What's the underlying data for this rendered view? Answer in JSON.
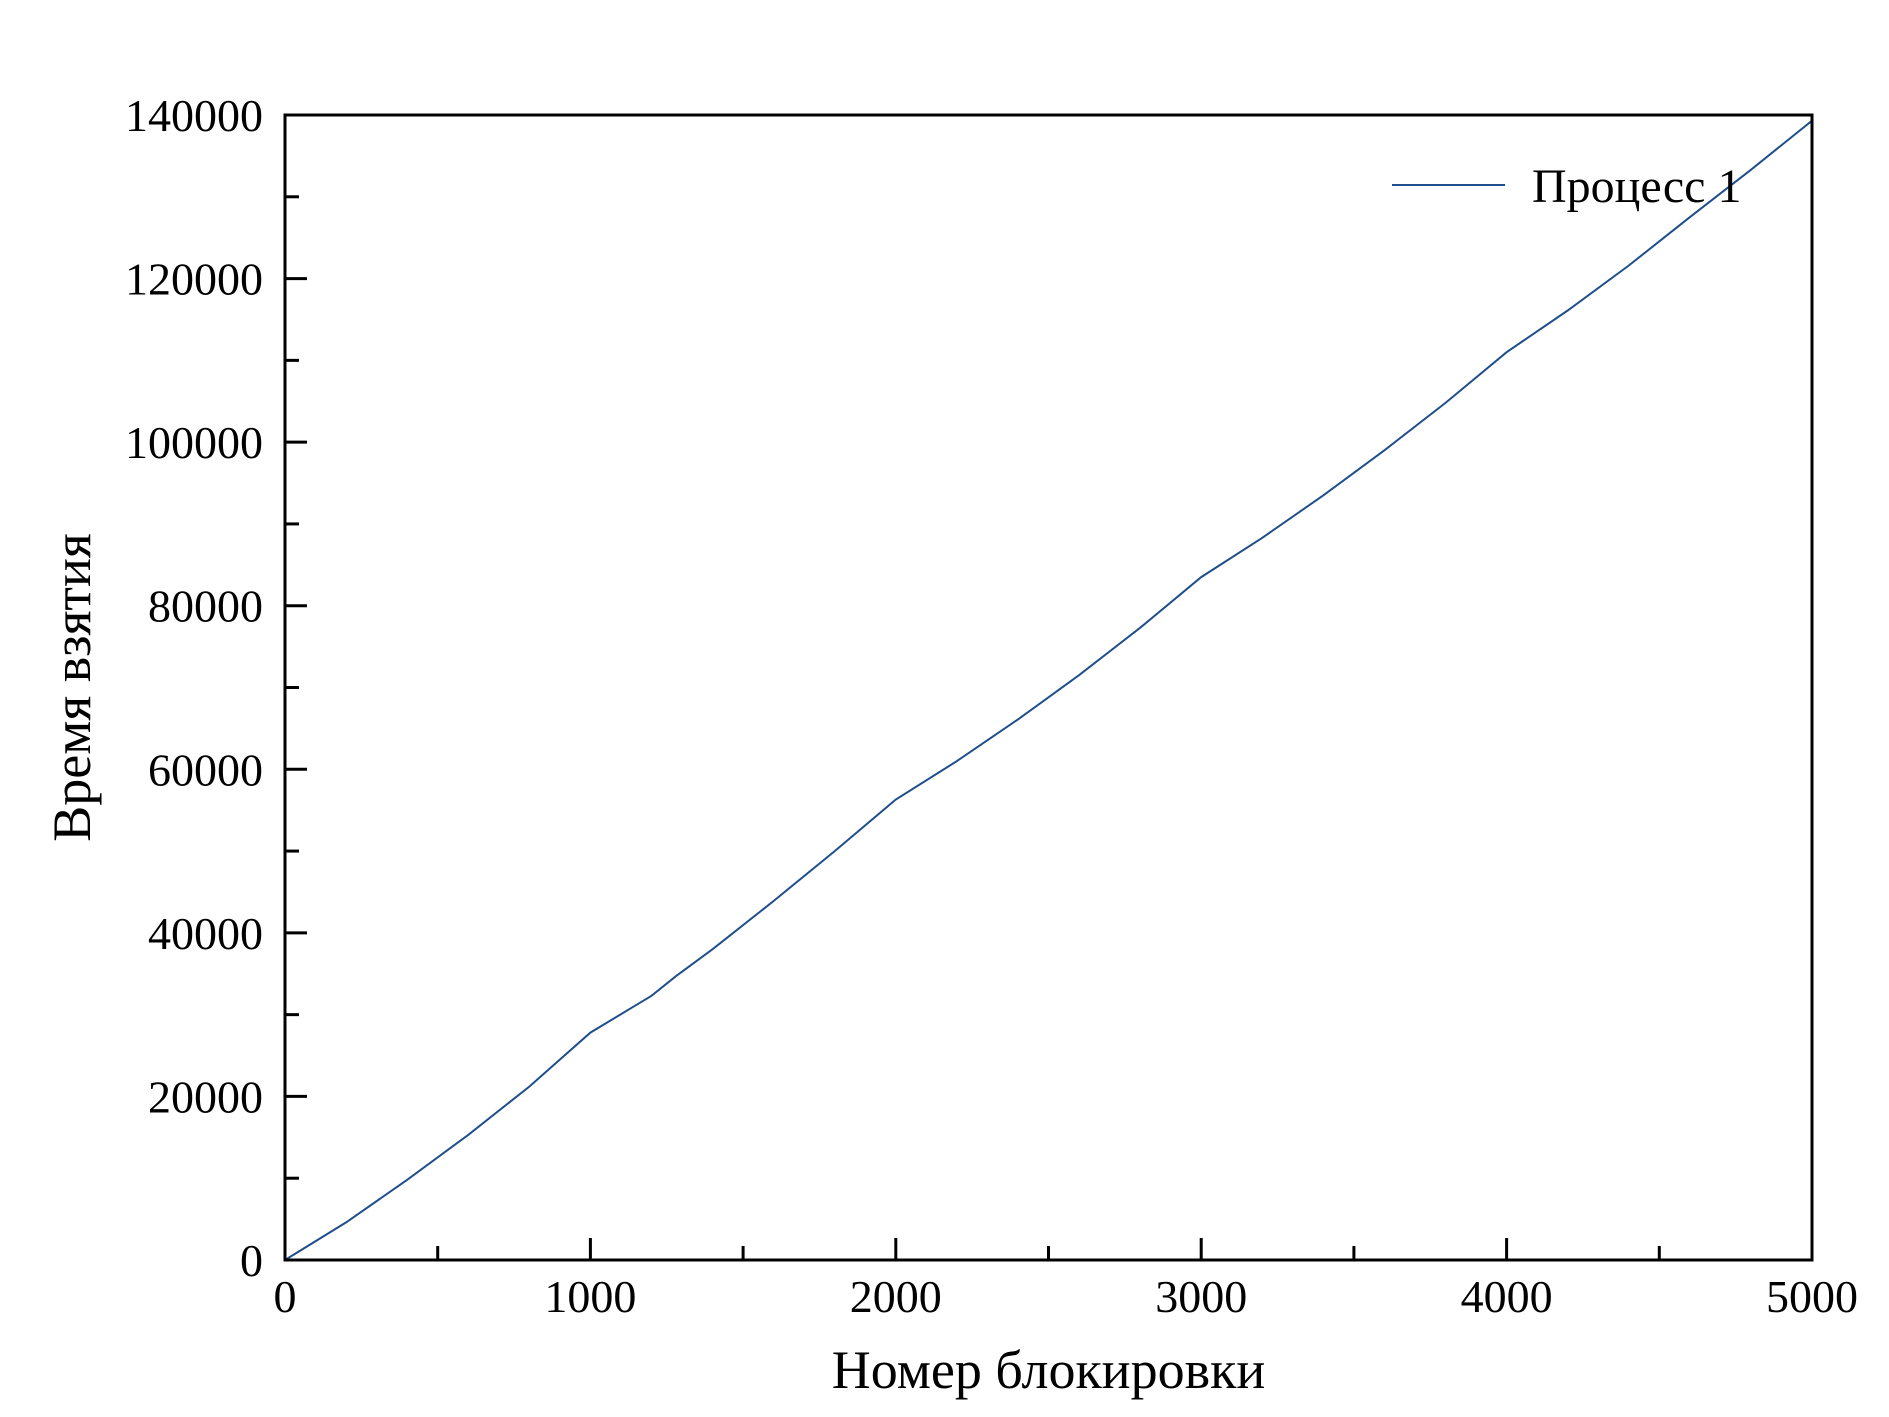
{
  "chart_data": {
    "type": "line",
    "title": "",
    "xlabel": "Номер блокировки",
    "ylabel": "Время взятия",
    "xlim": [
      0,
      5000
    ],
    "ylim": [
      0,
      140000
    ],
    "x_ticks": [
      0,
      1000,
      2000,
      3000,
      4000,
      5000
    ],
    "y_ticks": [
      0,
      20000,
      40000,
      60000,
      80000,
      100000,
      120000,
      140000
    ],
    "x_tick_labels": [
      "0",
      "1000",
      "2000",
      "3000",
      "4000",
      "5000"
    ],
    "y_tick_labels": [
      "0",
      "20000",
      "40000",
      "60000",
      "80000",
      "100000",
      "120000",
      "140000"
    ],
    "grid": false,
    "legend": {
      "position": "top-right"
    },
    "series": [
      {
        "name": "Процесс 1",
        "color": "#1f4e8c",
        "x": [
          0,
          200,
          400,
          600,
          800,
          1000,
          1200,
          1280,
          1400,
          1600,
          1800,
          2000,
          2200,
          2400,
          2600,
          2800,
          3000,
          3200,
          3400,
          3600,
          3800,
          4000,
          4200,
          4400,
          4600,
          4800,
          5000
        ],
        "y": [
          0,
          4600,
          9800,
          15300,
          21200,
          27800,
          32300,
          34700,
          38000,
          43900,
          50000,
          56300,
          61000,
          66100,
          71500,
          77300,
          83500,
          88300,
          93500,
          99000,
          104800,
          111000,
          116100,
          121600,
          127500,
          133300,
          139300
        ]
      }
    ]
  }
}
